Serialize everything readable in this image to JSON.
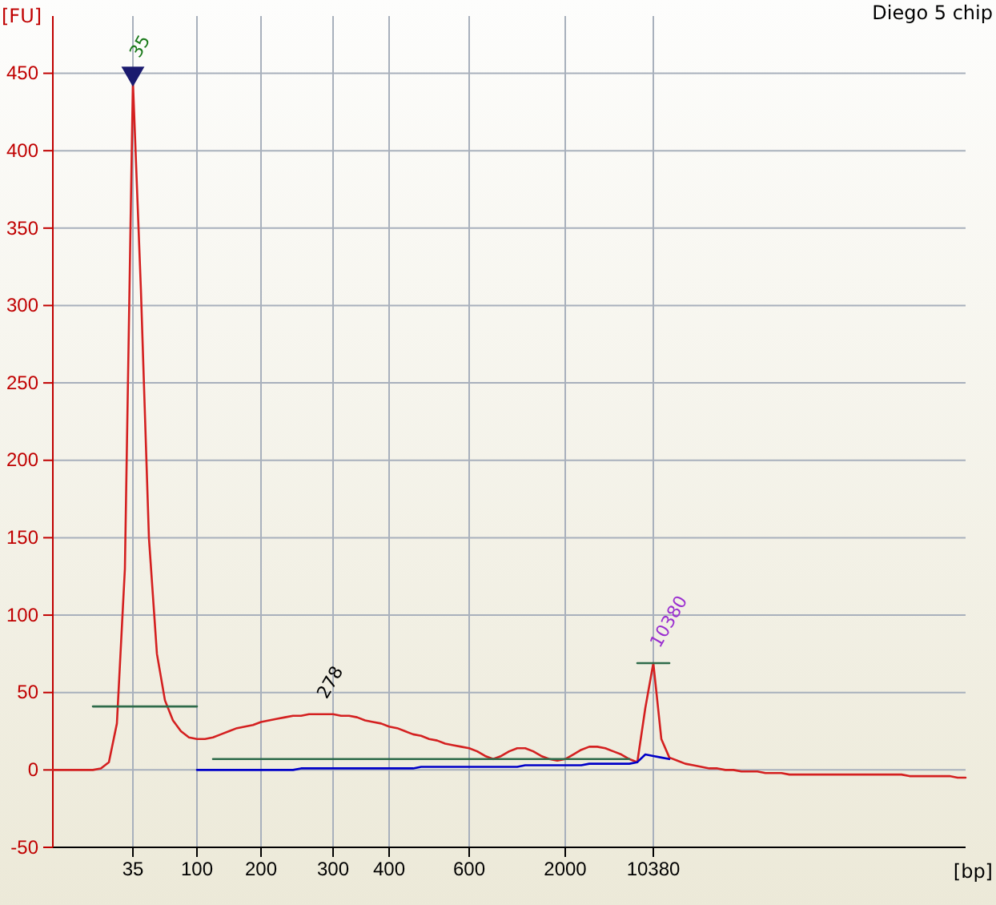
{
  "chart_data": {
    "type": "line",
    "title": "Diego 5 chip",
    "xlabel": "[bp]",
    "ylabel": "[FU]",
    "ylim": [
      -50,
      487
    ],
    "yticks": [
      -50,
      0,
      50,
      100,
      150,
      200,
      250,
      300,
      350,
      400,
      450
    ],
    "grid": true,
    "line_style": "solid",
    "categories": [
      null,
      null,
      null,
      null,
      null,
      null,
      null,
      null,
      null,
      null,
      "35",
      null,
      null,
      null,
      null,
      null,
      null,
      null,
      "100",
      null,
      null,
      null,
      null,
      null,
      null,
      null,
      "200",
      null,
      null,
      null,
      null,
      null,
      null,
      null,
      null,
      "300",
      null,
      null,
      null,
      null,
      null,
      null,
      "400",
      null,
      null,
      null,
      null,
      null,
      null,
      null,
      null,
      null,
      "600",
      null,
      null,
      null,
      null,
      null,
      null,
      null,
      null,
      null,
      null,
      null,
      "2000",
      null,
      null,
      null,
      null,
      null,
      null,
      null,
      null,
      null,
      null,
      "10380",
      null,
      null,
      null,
      null,
      null,
      null,
      null,
      null,
      null,
      null,
      null,
      null,
      null,
      null,
      null,
      null,
      null,
      null,
      null,
      null,
      null,
      null,
      null,
      null,
      null,
      null,
      null,
      null,
      null,
      null,
      null,
      null,
      null,
      null,
      null,
      null,
      null,
      null,
      null
    ],
    "series": [
      {
        "color": "#d42020",
        "values": [
          0,
          0,
          0,
          0,
          0,
          0,
          1,
          5,
          30,
          130,
          445,
          310,
          150,
          75,
          45,
          32,
          25,
          21,
          20,
          20,
          21,
          23,
          25,
          27,
          28,
          29,
          31,
          32,
          33,
          34,
          35,
          35,
          36,
          36,
          36,
          36,
          35,
          35,
          34,
          32,
          31,
          30,
          28,
          27,
          25,
          23,
          22,
          20,
          19,
          17,
          16,
          15,
          14,
          12,
          9,
          7,
          9,
          12,
          14,
          14,
          12,
          9,
          7,
          6,
          7,
          10,
          13,
          15,
          15,
          14,
          12,
          10,
          7,
          5,
          40,
          69,
          20,
          8,
          6,
          4,
          3,
          2,
          1,
          1,
          0,
          0,
          -1,
          -1,
          -1,
          -2,
          -2,
          -2,
          -3,
          -3,
          -3,
          -3,
          -3,
          -3,
          -3,
          -3,
          -3,
          -3,
          -3,
          -3,
          -3,
          -3,
          -3,
          -4,
          -4,
          -4,
          -4,
          -4,
          -4,
          -5,
          -5
        ]
      },
      {
        "color": "#0000c8",
        "values": [
          null,
          null,
          null,
          null,
          null,
          null,
          null,
          null,
          null,
          null,
          null,
          null,
          null,
          null,
          null,
          null,
          null,
          null,
          0,
          0,
          0,
          0,
          0,
          0,
          0,
          0,
          0,
          0,
          0,
          0,
          0,
          1,
          1,
          1,
          1,
          1,
          1,
          1,
          1,
          1,
          1,
          1,
          1,
          1,
          1,
          1,
          2,
          2,
          2,
          2,
          2,
          2,
          2,
          2,
          2,
          2,
          2,
          2,
          2,
          3,
          3,
          3,
          3,
          3,
          3,
          3,
          3,
          4,
          4,
          4,
          4,
          4,
          4,
          5,
          10,
          9,
          8,
          7,
          null,
          null,
          null,
          null,
          null,
          null,
          null,
          null,
          null,
          null,
          null,
          null,
          null,
          null,
          null,
          null,
          null,
          null,
          null,
          null,
          null,
          null,
          null,
          null,
          null,
          null,
          null,
          null,
          null,
          null,
          null,
          null,
          null,
          null,
          null,
          null,
          null
        ]
      },
      {
        "color": "#2e6b4a",
        "values": [
          null,
          null,
          null,
          null,
          null,
          41,
          41,
          41,
          41,
          41,
          41,
          41,
          41,
          41,
          41,
          41,
          41,
          41,
          41,
          null,
          7,
          7,
          7,
          7,
          7,
          7,
          7,
          7,
          7,
          7,
          7,
          7,
          7,
          7,
          7,
          7,
          7,
          7,
          7,
          7,
          7,
          7,
          7,
          7,
          7,
          7,
          7,
          7,
          7,
          7,
          7,
          7,
          7,
          7,
          7,
          7,
          7,
          7,
          7,
          7,
          7,
          7,
          7,
          7,
          7,
          7,
          7,
          7,
          7,
          7,
          7,
          7,
          7,
          null,
          null,
          null,
          null,
          null,
          null,
          null,
          null,
          null,
          null,
          null,
          null,
          null,
          null,
          null,
          null,
          null,
          null,
          null,
          null,
          null,
          null,
          null,
          null,
          null,
          null,
          null,
          null,
          null,
          null,
          null,
          null,
          null,
          null,
          null,
          null,
          null,
          null,
          null,
          null,
          null,
          null
        ]
      },
      {
        "color": "#2e6b4a",
        "values": [
          null,
          null,
          null,
          null,
          null,
          null,
          null,
          null,
          null,
          null,
          null,
          null,
          null,
          null,
          null,
          null,
          null,
          null,
          null,
          null,
          null,
          null,
          null,
          null,
          null,
          null,
          null,
          null,
          null,
          null,
          null,
          null,
          null,
          null,
          null,
          null,
          null,
          null,
          null,
          null,
          null,
          null,
          null,
          null,
          null,
          null,
          null,
          null,
          null,
          null,
          null,
          null,
          null,
          null,
          null,
          null,
          null,
          null,
          null,
          null,
          null,
          null,
          null,
          null,
          null,
          null,
          null,
          null,
          null,
          null,
          null,
          null,
          null,
          69,
          69,
          69,
          69,
          69,
          null,
          null,
          null,
          null,
          null,
          null,
          null,
          null,
          null,
          null,
          null,
          null,
          null,
          null,
          null,
          null,
          null,
          null,
          null,
          null,
          null,
          null,
          null,
          null,
          null,
          null,
          null,
          null,
          null,
          null,
          null,
          null,
          null,
          null,
          null,
          null,
          null
        ]
      },
      {
        "type": "scatter",
        "color": "#1a1a6e",
        "marker": "triangle",
        "values": [
          null,
          null,
          null,
          null,
          null,
          null,
          null,
          null,
          null,
          null,
          450,
          null,
          null,
          null,
          null,
          null,
          null,
          null,
          null,
          null,
          null,
          null,
          null,
          null,
          null,
          null,
          null,
          null,
          null,
          null,
          null,
          null,
          null,
          null,
          null,
          null,
          null,
          null,
          null,
          null,
          null,
          null,
          null,
          null,
          null,
          null,
          null,
          null,
          null,
          null,
          null,
          null,
          null,
          null,
          null,
          null,
          null,
          null,
          null,
          null,
          null,
          null,
          null,
          null,
          null,
          null,
          null,
          null,
          null,
          null,
          null,
          null,
          null,
          null,
          null,
          null,
          null,
          null,
          null,
          null,
          null,
          null,
          null,
          null,
          null,
          null,
          null,
          null,
          null,
          null,
          null,
          null,
          null,
          null,
          null,
          null,
          null,
          null,
          null,
          null,
          null,
          null,
          null,
          null,
          null,
          null,
          null,
          null,
          null,
          null,
          null,
          null,
          null,
          null,
          null
        ]
      }
    ],
    "annotations": [
      {
        "text": "35",
        "x": "35",
        "y": 450
      },
      {
        "text": "278",
        "y": 36
      },
      {
        "text": "10380",
        "x": "10380",
        "y": 69
      }
    ]
  }
}
